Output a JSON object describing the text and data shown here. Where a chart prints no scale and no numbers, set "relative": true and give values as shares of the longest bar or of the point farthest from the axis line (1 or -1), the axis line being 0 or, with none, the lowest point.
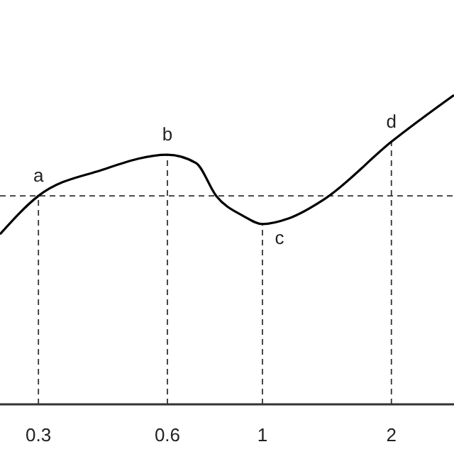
{
  "chart_data": {
    "type": "line",
    "relative": true,
    "log": "x",
    "x": [
      0.244,
      0.3,
      0.42,
      0.6,
      0.7,
      0.78,
      0.9,
      1,
      1.15,
      1.4,
      2,
      2.8
    ],
    "series": [
      {
        "color": "#000000",
        "values": [
          0.55,
          0.674,
          0.757,
          0.807,
          0.78,
          0.674,
          0.61,
          0.583,
          0.601,
          0.665,
          0.849,
          1
        ]
      }
    ],
    "xlim": [
      0.244,
      2.8
    ],
    "xticks": [
      0.3,
      0.6,
      1,
      2
    ],
    "line_style": "solid",
    "ref_lines": [
      {
        "axis": "y",
        "value": 0.674,
        "line_style": "dashed"
      },
      {
        "axis": "x",
        "value": 0.3,
        "line_style": "dashed"
      },
      {
        "axis": "x",
        "value": 0.6,
        "line_style": "dashed"
      },
      {
        "axis": "x",
        "value": 1,
        "line_style": "dashed"
      },
      {
        "axis": "x",
        "value": 2,
        "line_style": "dashed"
      }
    ],
    "annotations": [
      {
        "text": "a",
        "x": 0.3,
        "y": 0.674
      },
      {
        "text": "b",
        "x": 0.6,
        "y": 0.807
      },
      {
        "text": "c",
        "x": 1,
        "y": 0.583
      },
      {
        "text": "d",
        "x": 2,
        "y": 0.849
      }
    ]
  }
}
